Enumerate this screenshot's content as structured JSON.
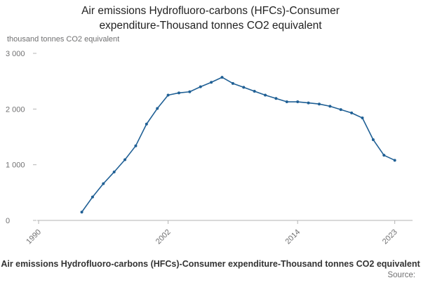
{
  "title": "Air emissions Hydrofluoro-carbons (HFCs)-Consumer expenditure-Thousand tonnes CO2 equivalent",
  "unit_label": "thousand tonnes CO2 equivalent",
  "footer": {
    "text": "Air emissions Hydrofluoro-carbons (HFCs)-Consumer expenditure-Thousand tonnes CO2 equivalent",
    "source_label": "Source:"
  },
  "chart_data": {
    "type": "line",
    "title": "Air emissions Hydrofluoro-carbons (HFCs)-Consumer expenditure-Thousand tonnes CO2 equivalent",
    "ylabel": "thousand tonnes CO2 equivalent",
    "xlabel": "",
    "grid": false,
    "legend_position": "none",
    "line_color": "#206095",
    "axis_color": "#b3b3b3",
    "tick_label_color": "#707071",
    "xlim": [
      1990,
      2024
    ],
    "ylim": [
      0,
      3000
    ],
    "xticks": [
      1990,
      2002,
      2014,
      2023
    ],
    "xtick_labels": [
      "1990",
      "2002",
      "2014",
      "2023"
    ],
    "yticks": [
      0,
      1000,
      2000,
      3000
    ],
    "ytick_labels": [
      "0",
      "1 000",
      "2 000",
      "3 000"
    ],
    "x": [
      1994,
      1995,
      1996,
      1997,
      1998,
      1999,
      2000,
      2001,
      2002,
      2003,
      2004,
      2005,
      2006,
      2007,
      2008,
      2009,
      2010,
      2011,
      2012,
      2013,
      2014,
      2015,
      2016,
      2017,
      2018,
      2019,
      2020,
      2021,
      2022,
      2023
    ],
    "series": [
      {
        "name": "Air emissions Hydrofluoro-carbons (HFCs)-Consumer expenditure",
        "values": [
          150,
          420,
          660,
          870,
          1090,
          1340,
          1730,
          2010,
          2250,
          2290,
          2310,
          2400,
          2480,
          2570,
          2460,
          2390,
          2320,
          2250,
          2190,
          2130,
          2130,
          2110,
          2090,
          2050,
          1990,
          1930,
          1840,
          1450,
          1170,
          1080
        ]
      }
    ]
  }
}
